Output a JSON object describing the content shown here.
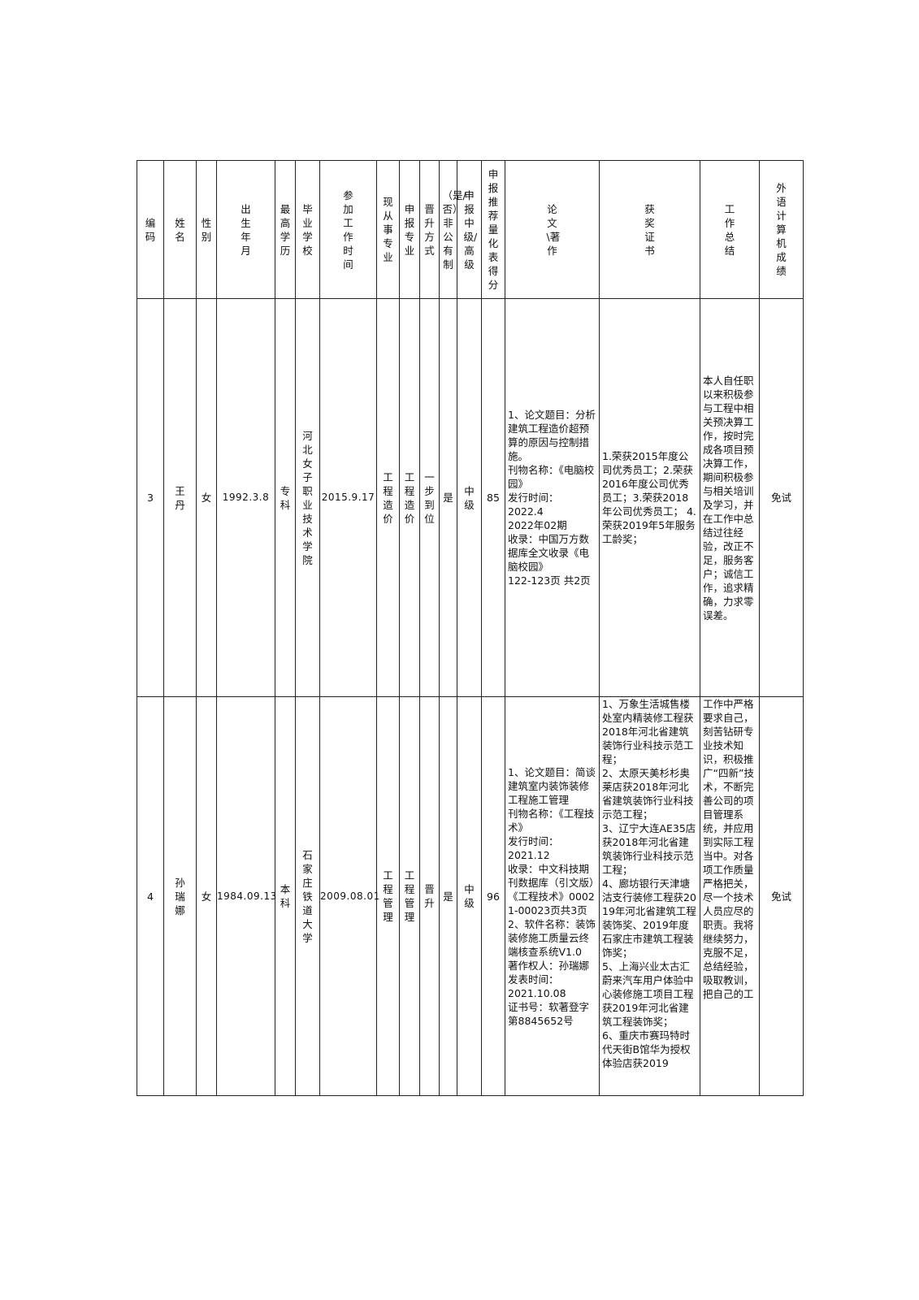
{
  "headers": [
    "编码",
    "姓名",
    "性别",
    "出生年月",
    "最高学历",
    "毕业学校",
    "参加工作时间",
    "现从事专业",
    "申报专业",
    "晋升方式",
    "（是/否）非公有制",
    "申报中级/高级",
    "申报推荐量化表得分",
    "论文\\著作",
    "获奖证书",
    "工作总结",
    "外语计算机成绩"
  ],
  "rows": [
    {
      "id": "3",
      "name": "王丹",
      "gender": "女",
      "birth": "1992.3.8",
      "education": "专科",
      "school": "河北女子职业技术学院",
      "work_start": "2015.9.17",
      "current_major": "工程造价",
      "apply_major": "工程造价",
      "promotion": "一步到位",
      "non_public": "是",
      "level": "中级",
      "score": "85",
      "papers": "1、论文题目：分析建筑工程造价超预算的原因与控制措施。\n刊物名称：《电脑校园》\n发行时间：\n2022.4\n2022年02期\n收录：中国万方数据库全文收录《电脑校园》\n122-123页 共2页",
      "awards": "1.荣获2015年度公司优秀员工；2.荣获2016年度公司优秀员工；3.荣获2018年公司优秀员工； 4.荣获2019年5年服务工龄奖；",
      "summary": "本人自任职以来积极参与工程中相关预决算工作，按时完成各项目预决算工作，期间积极参与相关培训及学习，并在工作中总结过往经验，改正不足，服务客户；诚信工作，追求精确，力求零误差。",
      "exam": "免试"
    },
    {
      "id": "4",
      "name": "孙瑞娜",
      "gender": "女",
      "birth": "1984.09.13",
      "education": "本科",
      "school": "石家庄铁道大学",
      "work_start": "2009.08.01",
      "current_major": "工程管理",
      "apply_major": "工程管理",
      "promotion": "晋升",
      "non_public": "是",
      "level": "中级",
      "score": "96",
      "papers": "1、论文题目：简谈建筑室内装饰装修工程施工管理\n刊物名称：《工程技术》\n发行时间：\n2021.12\n收录：中文科技期刊数据库（引文版）《工程技术》00021-00023页共3页\n2、软件名称：装饰装修施工质量云终端核查系统V1.0\n著作权人：孙瑞娜\n发表时间：\n2021.10.08\n证书号：软著登字第8845652号",
      "awards": "1、万象生活城售楼处室内精装修工程获2018年河北省建筑装饰行业科技示范工程；\n2、太原天美杉杉奥莱店获2018年河北省建筑装饰行业科技示范工程；\n3、辽宁大连AE35店获2018年河北省建筑装饰行业科技示范工程；\n4、廊坊银行天津塘沽支行装修工程获2019年河北省建筑工程装饰奖、2019年度石家庄市建筑工程装饰奖；\n5、上海兴业太古汇蔚来汽车用户体验中心装修施工项目工程获2019年河北省建筑工程装饰奖；\n6、重庆市赛玛特时代天街B馆华为授权体验店获2019",
      "summary": "工作中严格要求自己，刻苦钻研专业技术知识，积极推广“四新”技术，不断完善公司的项目管理系统，并应用到实际工程当中。对各项工作质量严格把关，尽一个技术人员应尽的职责。我将继续努力，克服不足，总结经验，吸取教训，把自己的工",
      "exam": "免试"
    }
  ]
}
